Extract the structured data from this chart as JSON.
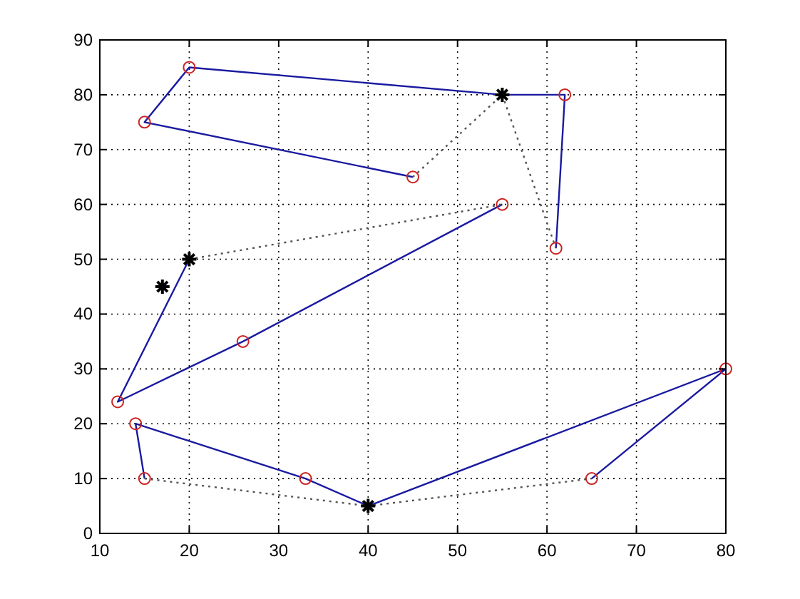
{
  "chart_data": {
    "type": "line",
    "xlim": [
      10,
      80
    ],
    "ylim": [
      0,
      90
    ],
    "xticks": [
      10,
      20,
      30,
      40,
      50,
      60,
      70,
      80
    ],
    "yticks": [
      0,
      10,
      20,
      30,
      40,
      50,
      60,
      70,
      80,
      90
    ],
    "grid": true,
    "series": [
      {
        "color": "#1a1aa0",
        "marker": "none",
        "line_style": "solid",
        "x": [
          45,
          15,
          20,
          55,
          62,
          61
        ],
        "values": [
          65,
          75,
          85,
          80,
          80,
          52
        ]
      },
      {
        "color": "#1a1aa0",
        "marker": "none",
        "line_style": "solid",
        "x": [
          20,
          12,
          26,
          55
        ],
        "values": [
          50,
          24,
          35,
          60
        ]
      },
      {
        "color": "#1a1aa0",
        "marker": "none",
        "line_style": "solid",
        "x": [
          15,
          14,
          33,
          40,
          80,
          65
        ],
        "values": [
          10,
          20,
          10,
          5,
          30,
          10
        ]
      },
      {
        "color": "#555555",
        "marker": "none",
        "line_style": "dotted",
        "x": [
          45,
          55,
          61
        ],
        "values": [
          65,
          80,
          52
        ]
      },
      {
        "color": "#555555",
        "marker": "none",
        "line_style": "dotted",
        "x": [
          20,
          55
        ],
        "values": [
          50,
          60
        ]
      },
      {
        "color": "#555555",
        "marker": "none",
        "line_style": "dotted",
        "x": [
          15,
          40,
          65
        ],
        "values": [
          10,
          5,
          10
        ]
      },
      {
        "type": "scatter",
        "color": "#cc2222",
        "marker": "circle",
        "x": [
          45,
          15,
          20,
          62,
          61,
          55,
          26,
          12,
          14,
          15,
          33,
          65,
          80
        ],
        "values": [
          65,
          75,
          85,
          80,
          52,
          60,
          35,
          24,
          20,
          10,
          10,
          10,
          30
        ]
      },
      {
        "type": "scatter",
        "color": "#000000",
        "marker": "cross",
        "x": [
          55,
          20,
          17,
          40
        ],
        "values": [
          80,
          50,
          45,
          5
        ]
      }
    ]
  }
}
